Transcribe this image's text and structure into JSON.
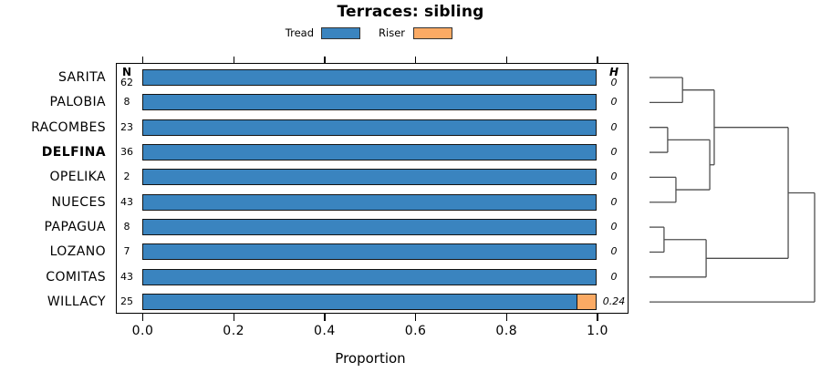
{
  "title": "Terraces: sibling",
  "legend": {
    "items": [
      {
        "label": "Tread",
        "color": "#3a84bf"
      },
      {
        "label": "Riser",
        "color": "#fbaa64"
      }
    ]
  },
  "columns": {
    "n_header": "N",
    "h_header": "H"
  },
  "chart_data": {
    "type": "bar",
    "subtype": "horizontal_stacked_proportion",
    "title": "Terraces: sibling",
    "categories": [
      "SARITA",
      "PALOBIA",
      "RACOMBES",
      "DELFINA",
      "OPELIKA",
      "NUECES",
      "PAPAGUA",
      "LOZANO",
      "COMITAS",
      "WILLACY"
    ],
    "bold_category": "DELFINA",
    "n_values": [
      62,
      8,
      23,
      36,
      2,
      43,
      8,
      7,
      43,
      25
    ],
    "h_values": [
      "0",
      "0",
      "0",
      "0",
      "0",
      "0",
      "0",
      "0",
      "0",
      "0.24"
    ],
    "series": [
      {
        "name": "Tread",
        "color": "#3a84bf",
        "values": [
          1,
          1,
          1,
          1,
          1,
          1,
          1,
          1,
          1,
          0.96
        ]
      },
      {
        "name": "Riser",
        "color": "#fbaa64",
        "values": [
          0,
          0,
          0,
          0,
          0,
          0,
          0,
          0,
          0,
          0.04
        ]
      }
    ],
    "xlabel": "Proportion",
    "xlim": [
      0,
      1
    ],
    "xticks": [
      "0.0",
      "0.2",
      "0.4",
      "0.6",
      "0.8",
      "1.0"
    ],
    "grid": false,
    "legend_position": "top-center",
    "dendrogram": {
      "side": "right",
      "leaves": [
        "SARITA",
        "PALOBIA",
        "RACOMBES",
        "DELFINA",
        "OPELIKA",
        "NUECES",
        "PAPAGUA",
        "LOZANO",
        "COMITAS",
        "WILLACY"
      ],
      "merges": [
        {
          "id": "M0",
          "a": "L0",
          "b": "L1",
          "h": 0.2
        },
        {
          "id": "M1",
          "a": "L2",
          "b": "L3",
          "h": 0.11
        },
        {
          "id": "M2",
          "a": "L4",
          "b": "L5",
          "h": 0.16
        },
        {
          "id": "M3",
          "a": "M1",
          "b": "M2",
          "h": 0.365
        },
        {
          "id": "M4",
          "a": "M0",
          "b": "M3",
          "h": 0.392
        },
        {
          "id": "M5",
          "a": "L6",
          "b": "L7",
          "h": 0.088
        },
        {
          "id": "M6",
          "a": "M5",
          "b": "L8",
          "h": 0.343
        },
        {
          "id": "M7",
          "a": "M4",
          "b": "M6",
          "h": 0.84
        },
        {
          "id": "M8",
          "a": "M7",
          "b": "L9",
          "h": 1.0
        }
      ]
    }
  },
  "colors": {
    "bar_border": "#141414",
    "dendrogram_line": "#4f4f4f",
    "axis": "#000000",
    "text": "#000000"
  }
}
